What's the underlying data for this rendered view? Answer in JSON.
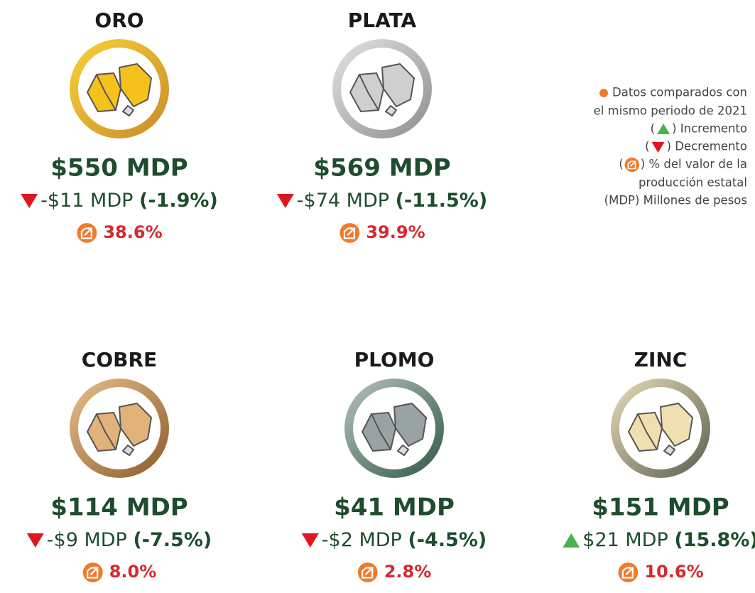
{
  "minerals": [
    {
      "name": "ORO",
      "value": "$550 MDP",
      "change": "-$11 MDP",
      "change_pct": "(-1.9%)",
      "trend": "down",
      "share": "38.6%",
      "colors": [
        "#f7d33a",
        "#c98a2a",
        "#f5c21b"
      ]
    },
    {
      "name": "PLATA",
      "value": "$569 MDP",
      "change": "-$74 MDP",
      "change_pct": "(-11.5%)",
      "trend": "down",
      "share": "39.9%",
      "colors": [
        "#e4e4e4",
        "#8c8c8c",
        "#cfcfcf"
      ]
    },
    {
      "name": "COBRE",
      "value": "$114 MDP",
      "change": "-$9 MDP",
      "change_pct": "(-7.5%)",
      "trend": "down",
      "share": "8.0%",
      "colors": [
        "#e8c08e",
        "#8a5a2b",
        "#e1b27a"
      ]
    },
    {
      "name": "PLOMO",
      "value": "$41 MDP",
      "change": "-$2 MDP",
      "change_pct": "(-4.5%)",
      "trend": "down",
      "share": "2.8%",
      "colors": [
        "#b8c2bd",
        "#2f5a45",
        "#9aa3a4"
      ]
    },
    {
      "name": "ZINC",
      "value": "$151 MDP",
      "change": "$21 MDP",
      "change_pct": "(15.8%)",
      "trend": "up",
      "share": "10.6%",
      "colors": [
        "#e8dcb4",
        "#5a5e52",
        "#f0dfb0"
      ]
    }
  ],
  "legend": {
    "note": [
      "Datos comparados con",
      "el mismo periodo de 2021"
    ],
    "open": "(",
    "increase": ") Incremento",
    "decrease": ") Decremento",
    "share": [
      ") % del valor de la",
      "producción estatal"
    ],
    "units": "(MDP) Millones de pesos"
  }
}
